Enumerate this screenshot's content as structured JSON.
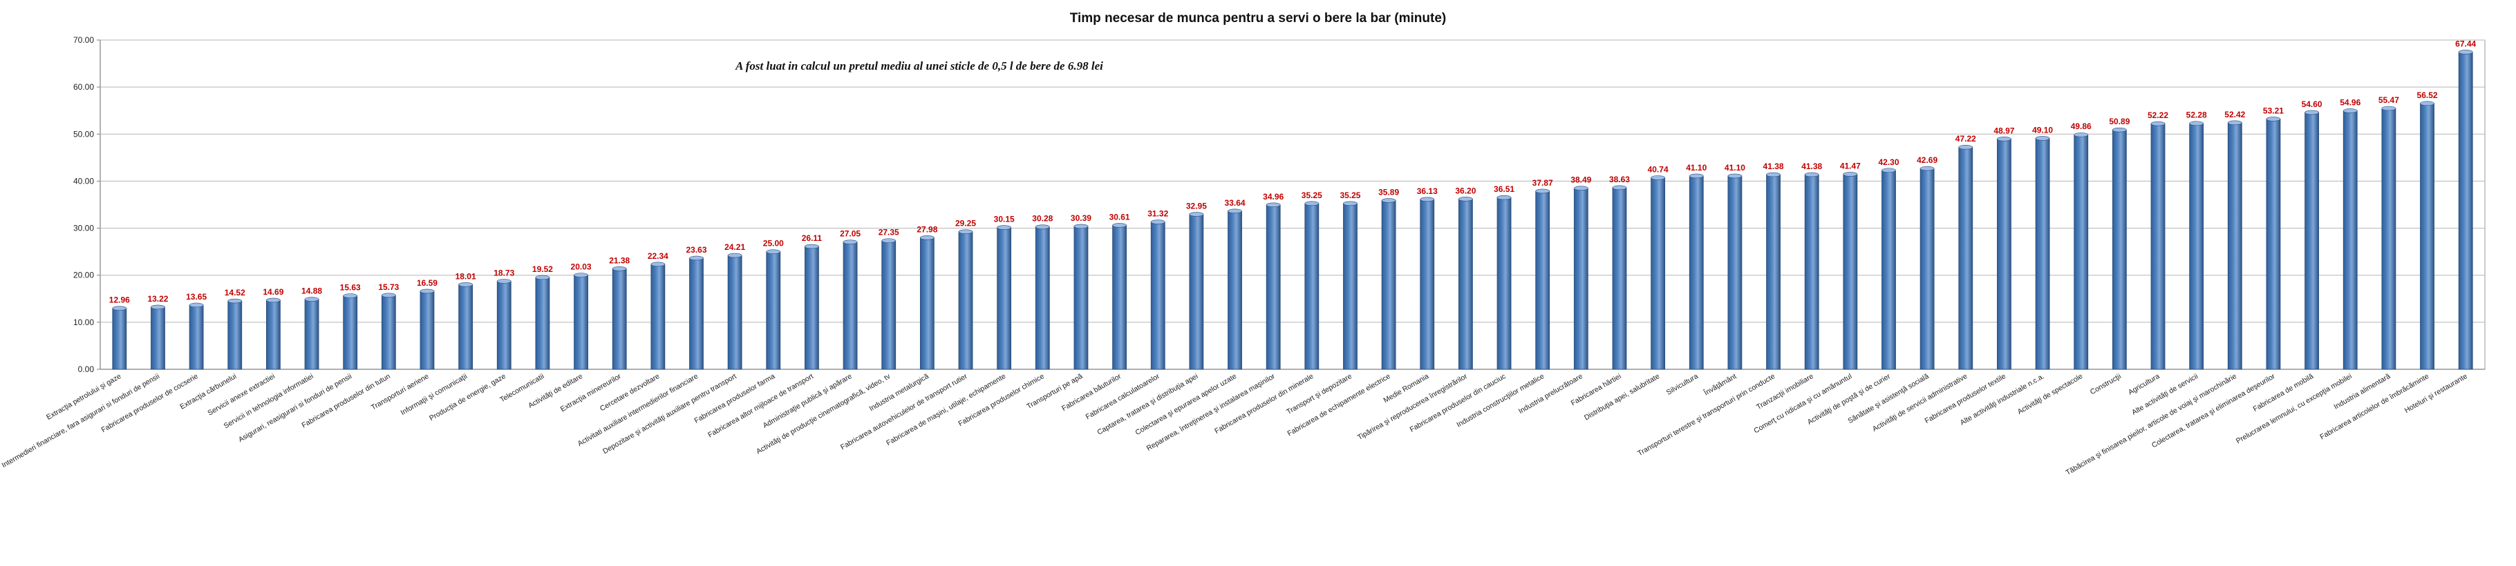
{
  "chart_data": {
    "type": "bar",
    "title": "Timp necesar de munca pentru a servi o bere la bar (minute)",
    "annotation": "A fost luat in calcul un pretul mediu al unei sticle de 0,5 l de bere de 6.98 lei",
    "xlabel": "",
    "ylabel": "",
    "ylim": [
      0,
      70
    ],
    "yticks": [
      "0.00",
      "10.00",
      "20.00",
      "30.00",
      "40.00",
      "50.00",
      "60.00",
      "70.00"
    ],
    "grid": true,
    "legend": "none",
    "bar_color": "#4f81bd",
    "label_color": "#c00000",
    "categories": [
      "Extracţia petrolului şi gaze",
      "Intermedieri financiare, fara asigurari si fonduri de pensii",
      "Fabricarea produselor de cocserie",
      "Extracţia cărbunelui",
      "Servicii anexe extractiei",
      "Servicii in tehnologia informatiei",
      "Asigurari, reasigurari si fonduri de pensii",
      "Fabricarea produselor din tutun",
      "Transporturi aeriene",
      "Informaţii şi comunicaţii",
      "Producţia de energie, gaze",
      "Telecomunicatii",
      "Activităţi de editare",
      "Extracţia minereurilor",
      "Cercetare dezvoltare",
      "Activitati auxiliare intermedierilor financiare",
      "Depozitare şi activităţi auxiliare pentru transport",
      "Fabricarea produselor farma",
      "Fabricarea altor mijloace de transport",
      "Administraţie publică şi apărare",
      "Activităţi de producţie cinematografică, video, tv",
      "Industria metalurgică",
      "Fabricarea autovehiculelor de transport rutier",
      "Fabricarea de maşini, utilaje, echipamente",
      "Fabricarea produselor chimice",
      "Transporturi pe apă",
      "Fabricarea băuturilor",
      "Fabricarea calculatoarelor",
      "Captarea, tratarea şi distribuţia apei",
      "Colectarea şi epurarea apelor uzate",
      "Repararea, întreţinerea şi instalarea maşinilor",
      "Fabricarea produselor din minerale",
      "Transport şi depozitare",
      "Fabricarea de echipamente electrice",
      "Medie Romania",
      "Tipărirea şi reproducerea înregistrărilor",
      "Fabricarea produselor din cauciuc",
      "Industria construcţiilor metalice",
      "Industria prelucrătoare",
      "Fabricarea hârtiei",
      "Distribuţia apei, salubritate",
      "Silvicultura",
      "Învăţământ",
      "Transporturi terestre şi transporturi prin conducte",
      "Tranzacţii imobiliare",
      "Comerţ cu ridicata şi cu amănuntul",
      "Activităţi de poştă şi de curier",
      "Sănătate şi asistenţă socială",
      "Activităţi de servicii administrative",
      "Fabricarea produselor textile",
      "Alte activităţi industriale n.c.a.",
      "Activităţi de spectacole",
      "Construcţii",
      "Agricultura",
      "Alte activităţi de servicii",
      "Tăbăcirea şi finisarea pieilor, articole de voiaj şi marochinărie",
      "Colectarea, tratarea şi eliminarea deşeurilor",
      "Fabricarea de mobilă",
      "Prelucrarea lemnului, cu excepţia mobilei",
      "Industria alimentară",
      "Fabricarea articolelor de îmbrăcăminte",
      "Hoteluri şi restaurante"
    ],
    "values": [
      12.96,
      13.22,
      13.65,
      14.52,
      14.69,
      14.88,
      15.63,
      15.73,
      16.59,
      18.01,
      18.73,
      19.52,
      20.03,
      21.38,
      22.34,
      23.63,
      24.21,
      25.0,
      26.11,
      27.05,
      27.35,
      27.98,
      29.25,
      30.15,
      30.28,
      30.39,
      30.61,
      31.32,
      32.95,
      33.64,
      34.96,
      35.25,
      35.25,
      35.89,
      36.13,
      36.2,
      36.51,
      37.87,
      38.49,
      38.63,
      40.74,
      41.1,
      41.1,
      41.38,
      41.38,
      41.47,
      42.3,
      42.69,
      47.22,
      48.97,
      49.1,
      49.86,
      50.89,
      52.22,
      52.28,
      52.42,
      53.21,
      54.6,
      54.96,
      55.47,
      56.52,
      67.44
    ],
    "data_labels": [
      "12.96",
      "13.22",
      "13.65",
      "14.52",
      "14.69",
      "14.88",
      "15.63",
      "15.73",
      "16.59",
      "18.01",
      "18.73",
      "19.52",
      "20.03",
      "21.38",
      "22.34",
      "23.63",
      "24.21",
      "25.00",
      "26.11",
      "27.05",
      "27.35",
      "27.98",
      "29.25",
      "30.15",
      "30.28",
      "30.39",
      "30.61",
      "31.32",
      "32.95",
      "33.64",
      "34.96",
      "35.25",
      "35.25",
      "35.89",
      "36.13",
      "36.20",
      "36.51",
      "37.87",
      "38.49",
      "38.63",
      "40.74",
      "41.10",
      "41.10",
      "41.38",
      "41.38",
      "41.47",
      "42.30",
      "42.69",
      "47.22",
      "48.97",
      "49.10",
      "49.86",
      "50.89",
      "52.22",
      "52.28",
      "52.42",
      "53.21",
      "54.60",
      "54.96",
      "55.47",
      "56.52",
      "67.44"
    ]
  }
}
